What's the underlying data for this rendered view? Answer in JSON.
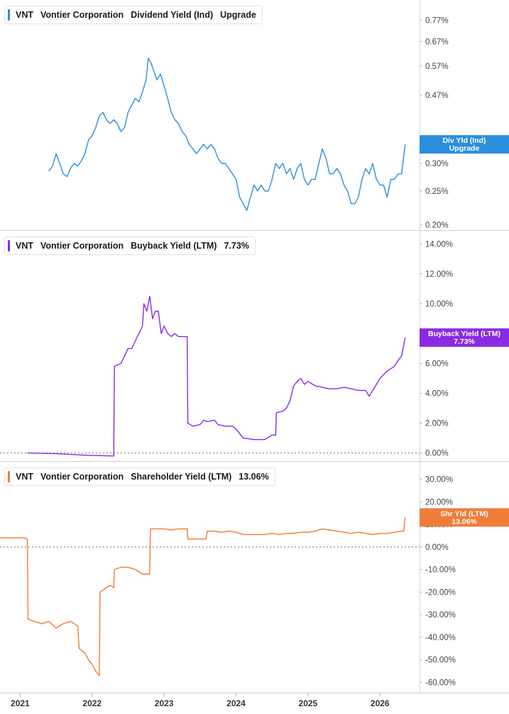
{
  "chart_data": [
    {
      "type": "line",
      "legend": {
        "ticker": "VNT",
        "company": "Vontier Corporation",
        "metric": "Dividend Yield (Ind)",
        "value": "Upgrade"
      },
      "color": "#2b8fe0",
      "scale": "log",
      "yticks": [
        "0.77%",
        "0.67%",
        "0.57%",
        "0.47%",
        "0.30%",
        "0.25%",
        "0.20%"
      ],
      "ytick_values": [
        0.77,
        0.67,
        0.57,
        0.47,
        0.3,
        0.25,
        0.2
      ],
      "ylim": [
        0.195,
        0.84
      ],
      "series": [
        {
          "values": [
            [
              2021.4,
              0.285
            ],
            [
              2021.45,
              0.295
            ],
            [
              2021.5,
              0.32
            ],
            [
              2021.55,
              0.3
            ],
            [
              2021.6,
              0.28
            ],
            [
              2021.65,
              0.275
            ],
            [
              2021.7,
              0.29
            ],
            [
              2021.75,
              0.3
            ],
            [
              2021.8,
              0.295
            ],
            [
              2021.85,
              0.305
            ],
            [
              2021.9,
              0.32
            ],
            [
              2021.95,
              0.35
            ],
            [
              2022.0,
              0.36
            ],
            [
              2022.05,
              0.38
            ],
            [
              2022.1,
              0.41
            ],
            [
              2022.15,
              0.42
            ],
            [
              2022.2,
              0.4
            ],
            [
              2022.25,
              0.39
            ],
            [
              2022.3,
              0.4
            ],
            [
              2022.35,
              0.39
            ],
            [
              2022.4,
              0.37
            ],
            [
              2022.45,
              0.38
            ],
            [
              2022.5,
              0.42
            ],
            [
              2022.55,
              0.44
            ],
            [
              2022.6,
              0.46
            ],
            [
              2022.65,
              0.45
            ],
            [
              2022.7,
              0.48
            ],
            [
              2022.75,
              0.52
            ],
            [
              2022.78,
              0.6
            ],
            [
              2022.82,
              0.58
            ],
            [
              2022.86,
              0.55
            ],
            [
              2022.9,
              0.52
            ],
            [
              2022.95,
              0.54
            ],
            [
              2023.0,
              0.5
            ],
            [
              2023.05,
              0.46
            ],
            [
              2023.1,
              0.42
            ],
            [
              2023.15,
              0.4
            ],
            [
              2023.2,
              0.39
            ],
            [
              2023.25,
              0.37
            ],
            [
              2023.3,
              0.36
            ],
            [
              2023.35,
              0.34
            ],
            [
              2023.4,
              0.33
            ],
            [
              2023.45,
              0.32
            ],
            [
              2023.5,
              0.33
            ],
            [
              2023.55,
              0.34
            ],
            [
              2023.6,
              0.33
            ],
            [
              2023.65,
              0.34
            ],
            [
              2023.7,
              0.33
            ],
            [
              2023.75,
              0.31
            ],
            [
              2023.8,
              0.3
            ],
            [
              2023.85,
              0.3
            ],
            [
              2023.9,
              0.29
            ],
            [
              2023.95,
              0.28
            ],
            [
              2024.0,
              0.27
            ],
            [
              2024.05,
              0.24
            ],
            [
              2024.1,
              0.23
            ],
            [
              2024.15,
              0.22
            ],
            [
              2024.2,
              0.24
            ],
            [
              2024.25,
              0.26
            ],
            [
              2024.3,
              0.25
            ],
            [
              2024.35,
              0.26
            ],
            [
              2024.4,
              0.25
            ],
            [
              2024.45,
              0.25
            ],
            [
              2024.5,
              0.27
            ],
            [
              2024.55,
              0.3
            ],
            [
              2024.6,
              0.29
            ],
            [
              2024.65,
              0.3
            ],
            [
              2024.7,
              0.28
            ],
            [
              2024.75,
              0.29
            ],
            [
              2024.8,
              0.27
            ],
            [
              2024.85,
              0.29
            ],
            [
              2024.9,
              0.3
            ],
            [
              2024.95,
              0.27
            ],
            [
              2025.0,
              0.26
            ],
            [
              2025.05,
              0.27
            ],
            [
              2025.1,
              0.27
            ],
            [
              2025.15,
              0.3
            ],
            [
              2025.2,
              0.33
            ],
            [
              2025.25,
              0.31
            ],
            [
              2025.3,
              0.28
            ],
            [
              2025.35,
              0.28
            ],
            [
              2025.4,
              0.29
            ],
            [
              2025.45,
              0.28
            ],
            [
              2025.5,
              0.26
            ],
            [
              2025.55,
              0.25
            ],
            [
              2025.6,
              0.23
            ],
            [
              2025.65,
              0.23
            ],
            [
              2025.7,
              0.24
            ],
            [
              2025.75,
              0.27
            ],
            [
              2025.8,
              0.29
            ],
            [
              2025.85,
              0.28
            ],
            [
              2025.9,
              0.3
            ],
            [
              2025.95,
              0.27
            ],
            [
              2026.0,
              0.26
            ],
            [
              2026.05,
              0.26
            ],
            [
              2026.1,
              0.24
            ],
            [
              2026.15,
              0.27
            ],
            [
              2026.2,
              0.27
            ],
            [
              2026.25,
              0.28
            ],
            [
              2026.3,
              0.28
            ],
            [
              2026.35,
              0.34
            ]
          ]
        }
      ],
      "badge": [
        "Div Yld (Ind)",
        "Upgrade"
      ],
      "badge_color": "#2b8fe0",
      "hidden_label_hint": "0.3..%"
    },
    {
      "type": "line",
      "legend": {
        "ticker": "VNT",
        "company": "Vontier Corporation",
        "metric": "Buyback Yield (LTM)",
        "value": "7.73%"
      },
      "color": "#8a2be2",
      "scale": "linear",
      "yticks": [
        "14.00%",
        "12.00%",
        "10.00%",
        "8.00%",
        "6.00%",
        "4.00%",
        "2.00%",
        "0.00%"
      ],
      "ytick_values": [
        14,
        12,
        10,
        8,
        6,
        4,
        2,
        0
      ],
      "ylim": [
        -0.4,
        14.5
      ],
      "zero_line": true,
      "series": [
        {
          "values": [
            [
              2021.1,
              0.0
            ],
            [
              2021.5,
              -0.05
            ],
            [
              2021.9,
              -0.15
            ],
            [
              2022.3,
              -0.2
            ],
            [
              2022.31,
              5.8
            ],
            [
              2022.4,
              6.0
            ],
            [
              2022.45,
              6.5
            ],
            [
              2022.5,
              7.0
            ],
            [
              2022.55,
              7.0
            ],
            [
              2022.6,
              7.5
            ],
            [
              2022.65,
              8.0
            ],
            [
              2022.7,
              8.5
            ],
            [
              2022.72,
              10.0
            ],
            [
              2022.76,
              9.5
            ],
            [
              2022.8,
              10.5
            ],
            [
              2022.84,
              9.0
            ],
            [
              2022.88,
              9.5
            ],
            [
              2022.92,
              9.5
            ],
            [
              2022.96,
              8.0
            ],
            [
              2023.0,
              8.5
            ],
            [
              2023.05,
              8.0
            ],
            [
              2023.1,
              7.8
            ],
            [
              2023.15,
              8.0
            ],
            [
              2023.2,
              7.8
            ],
            [
              2023.32,
              7.8
            ],
            [
              2023.33,
              2.0
            ],
            [
              2023.4,
              1.8
            ],
            [
              2023.5,
              1.9
            ],
            [
              2023.55,
              2.2
            ],
            [
              2023.6,
              2.1
            ],
            [
              2023.7,
              2.2
            ],
            [
              2023.75,
              1.9
            ],
            [
              2023.85,
              1.8
            ],
            [
              2023.95,
              1.8
            ],
            [
              2024.0,
              1.6
            ],
            [
              2024.1,
              1.0
            ],
            [
              2024.25,
              0.9
            ],
            [
              2024.4,
              0.9
            ],
            [
              2024.5,
              1.2
            ],
            [
              2024.55,
              1.2
            ],
            [
              2024.56,
              2.7
            ],
            [
              2024.65,
              2.8
            ],
            [
              2024.7,
              3.0
            ],
            [
              2024.75,
              3.5
            ],
            [
              2024.8,
              4.5
            ],
            [
              2024.85,
              4.8
            ],
            [
              2024.9,
              5.0
            ],
            [
              2024.95,
              4.6
            ],
            [
              2025.0,
              4.8
            ],
            [
              2025.1,
              4.5
            ],
            [
              2025.2,
              4.4
            ],
            [
              2025.3,
              4.3
            ],
            [
              2025.4,
              4.3
            ],
            [
              2025.5,
              4.4
            ],
            [
              2025.6,
              4.3
            ],
            [
              2025.7,
              4.2
            ],
            [
              2025.8,
              4.2
            ],
            [
              2025.85,
              3.8
            ],
            [
              2025.9,
              4.2
            ],
            [
              2025.95,
              4.6
            ],
            [
              2026.0,
              5.0
            ],
            [
              2026.1,
              5.5
            ],
            [
              2026.2,
              5.8
            ],
            [
              2026.25,
              6.2
            ],
            [
              2026.3,
              6.5
            ],
            [
              2026.35,
              7.73
            ]
          ]
        }
      ],
      "badge": [
        "Buyback Yield (LTM)",
        "7.73%"
      ],
      "badge_color": "#8a2be2"
    },
    {
      "type": "line",
      "legend": {
        "ticker": "VNT",
        "company": "Vontier Corporation",
        "metric": "Shareholder Yield (LTM)",
        "value": "13.06%"
      },
      "color": "#f07c3a",
      "scale": "linear",
      "yticks": [
        "30.00%",
        "20.00%",
        "10.00%",
        "0.00%",
        "-10.00%",
        "-20.00%",
        "-30.00%",
        "-40.00%",
        "-50.00%",
        "-60.00%"
      ],
      "ytick_values": [
        30,
        20,
        10,
        0,
        -10,
        -20,
        -30,
        -40,
        -50,
        -60
      ],
      "ylim": [
        -63,
        33
      ],
      "zero_line": true,
      "series": [
        {
          "values": [
            [
              2020.7,
              4.0
            ],
            [
              2020.9,
              4.0
            ],
            [
              2021.05,
              4.0
            ],
            [
              2021.1,
              3.5
            ],
            [
              2021.11,
              -32.0
            ],
            [
              2021.2,
              -33.0
            ],
            [
              2021.3,
              -34.0
            ],
            [
              2021.4,
              -33.0
            ],
            [
              2021.5,
              -36.0
            ],
            [
              2021.6,
              -34.0
            ],
            [
              2021.7,
              -33.0
            ],
            [
              2021.8,
              -35.0
            ],
            [
              2021.82,
              -45.0
            ],
            [
              2021.9,
              -47.0
            ],
            [
              2021.95,
              -50.0
            ],
            [
              2022.0,
              -52.0
            ],
            [
              2022.05,
              -55.0
            ],
            [
              2022.1,
              -57.0
            ],
            [
              2022.11,
              -20.0
            ],
            [
              2022.2,
              -18.0
            ],
            [
              2022.25,
              -17.0
            ],
            [
              2022.3,
              -18.0
            ],
            [
              2022.31,
              -10.0
            ],
            [
              2022.4,
              -9.0
            ],
            [
              2022.5,
              -9.0
            ],
            [
              2022.6,
              -10.0
            ],
            [
              2022.7,
              -12.0
            ],
            [
              2022.8,
              -12.0
            ],
            [
              2022.81,
              8.0
            ],
            [
              2022.9,
              8.0
            ],
            [
              2023.0,
              8.0
            ],
            [
              2023.1,
              7.5
            ],
            [
              2023.2,
              8.0
            ],
            [
              2023.32,
              8.0
            ],
            [
              2023.33,
              3.5
            ],
            [
              2023.45,
              3.5
            ],
            [
              2023.58,
              3.5
            ],
            [
              2023.6,
              7.0
            ],
            [
              2023.7,
              7.0
            ],
            [
              2023.8,
              6.5
            ],
            [
              2023.9,
              7.0
            ],
            [
              2024.0,
              6.5
            ],
            [
              2024.1,
              5.5
            ],
            [
              2024.2,
              5.5
            ],
            [
              2024.3,
              5.5
            ],
            [
              2024.4,
              5.5
            ],
            [
              2024.5,
              6.0
            ],
            [
              2024.6,
              5.5
            ],
            [
              2024.7,
              6.0
            ],
            [
              2024.8,
              6.0
            ],
            [
              2024.9,
              6.5
            ],
            [
              2025.0,
              6.5
            ],
            [
              2025.1,
              7.0
            ],
            [
              2025.2,
              8.0
            ],
            [
              2025.3,
              7.5
            ],
            [
              2025.4,
              7.0
            ],
            [
              2025.5,
              6.5
            ],
            [
              2025.6,
              6.0
            ],
            [
              2025.7,
              6.5
            ],
            [
              2025.8,
              6.0
            ],
            [
              2025.9,
              5.5
            ],
            [
              2026.0,
              6.0
            ],
            [
              2026.1,
              6.0
            ],
            [
              2026.2,
              6.5
            ],
            [
              2026.3,
              7.0
            ],
            [
              2026.33,
              7.0
            ],
            [
              2026.35,
              13.06
            ]
          ]
        }
      ],
      "badge": [
        "Shr Yld (LTM)",
        "13.06%"
      ],
      "badge_color": "#f07c3a"
    }
  ],
  "x_axis": {
    "ticks": [
      "2021",
      "2022",
      "2023",
      "2024",
      "2025",
      "2026"
    ],
    "tick_values": [
      2021,
      2022,
      2023,
      2024,
      2025,
      2026
    ],
    "xlim": [
      2020.72,
      2026.55
    ]
  }
}
